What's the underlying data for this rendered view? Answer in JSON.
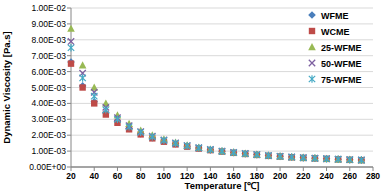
{
  "chart_data": {
    "type": "scatter",
    "x_label": "Temperature [℃]",
    "y_label": "Dynamic Viscosity [Pa.s]",
    "x": [
      20,
      30,
      40,
      50,
      60,
      70,
      80,
      90,
      100,
      110,
      120,
      130,
      140,
      150,
      160,
      170,
      180,
      190,
      200,
      210,
      220,
      230,
      240,
      250,
      260,
      270
    ],
    "series": [
      {
        "name": "WFME",
        "color": "#4a7ebb",
        "marker": "diamond",
        "values": [
          0.0066,
          0.0051,
          0.0041,
          0.0034,
          0.00285,
          0.00242,
          0.0021,
          0.00184,
          0.00163,
          0.00146,
          0.00131,
          0.00119,
          0.00108,
          0.00099,
          0.00091,
          0.00084,
          0.00078,
          0.00072,
          0.00067,
          0.00063,
          0.00059,
          0.00055,
          0.00052,
          0.00049,
          0.00046,
          0.00044
        ]
      },
      {
        "name": "WCME",
        "color": "#be4b48",
        "marker": "square",
        "values": [
          0.0065,
          0.005,
          0.004,
          0.0033,
          0.00278,
          0.00237,
          0.00205,
          0.0018,
          0.00159,
          0.00142,
          0.00128,
          0.00116,
          0.00106,
          0.00097,
          0.00089,
          0.00082,
          0.00076,
          0.0007,
          0.00066,
          0.00061,
          0.00057,
          0.00054,
          0.00051,
          0.00048,
          0.00045,
          0.00043
        ]
      },
      {
        "name": "25-WFME",
        "color": "#98b954",
        "marker": "triangle",
        "values": [
          0.0087,
          0.0064,
          0.005,
          0.004,
          0.00325,
          0.00272,
          0.0023,
          0.00199,
          0.00174,
          0.00154,
          0.00137,
          0.00123,
          0.00111,
          0.00101,
          0.00093,
          0.00085,
          0.00079,
          0.00073,
          0.00068,
          0.00063,
          0.00059,
          0.00056,
          0.00052,
          0.00049,
          0.00047,
          0.00044
        ]
      },
      {
        "name": "50-WFME",
        "color": "#7d60a0",
        "marker": "x",
        "values": [
          0.0079,
          0.0059,
          0.0047,
          0.00375,
          0.0031,
          0.0026,
          0.00223,
          0.00194,
          0.0017,
          0.00151,
          0.00135,
          0.00121,
          0.0011,
          0.001,
          0.00092,
          0.00085,
          0.00078,
          0.00072,
          0.00067,
          0.00063,
          0.00059,
          0.00055,
          0.00052,
          0.00049,
          0.00046,
          0.00044
        ]
      },
      {
        "name": "75-WFME",
        "color": "#46aac5",
        "marker": "star",
        "values": [
          0.0075,
          0.0056,
          0.00445,
          0.0036,
          0.003,
          0.00253,
          0.00218,
          0.0019,
          0.00167,
          0.00149,
          0.00133,
          0.0012,
          0.00109,
          0.00099,
          0.00091,
          0.00084,
          0.00078,
          0.00072,
          0.00067,
          0.00062,
          0.00058,
          0.00055,
          0.00052,
          0.00049,
          0.00046,
          0.00044
        ]
      }
    ],
    "xlim": [
      20,
      280
    ],
    "xticks": [
      20,
      40,
      60,
      80,
      100,
      120,
      140,
      160,
      180,
      200,
      220,
      240,
      260,
      280
    ],
    "ylim": [
      0,
      0.01
    ],
    "yticks": [
      {
        "value": 0,
        "label": "0.00E+00"
      },
      {
        "value": 0.001,
        "label": "1.00E-03"
      },
      {
        "value": 0.002,
        "label": "2.00E-03"
      },
      {
        "value": 0.003,
        "label": "3.00E-03"
      },
      {
        "value": 0.004,
        "label": "4.00E-03"
      },
      {
        "value": 0.005,
        "label": "5.00E-03"
      },
      {
        "value": 0.006,
        "label": "6.00E-03"
      },
      {
        "value": 0.007,
        "label": "7.00E-03"
      },
      {
        "value": 0.008,
        "label": "8.00E-03"
      },
      {
        "value": 0.009,
        "label": "9.00E-03"
      },
      {
        "value": 0.01,
        "label": "1.00E-02"
      }
    ],
    "grid": true,
    "legend": "right"
  }
}
